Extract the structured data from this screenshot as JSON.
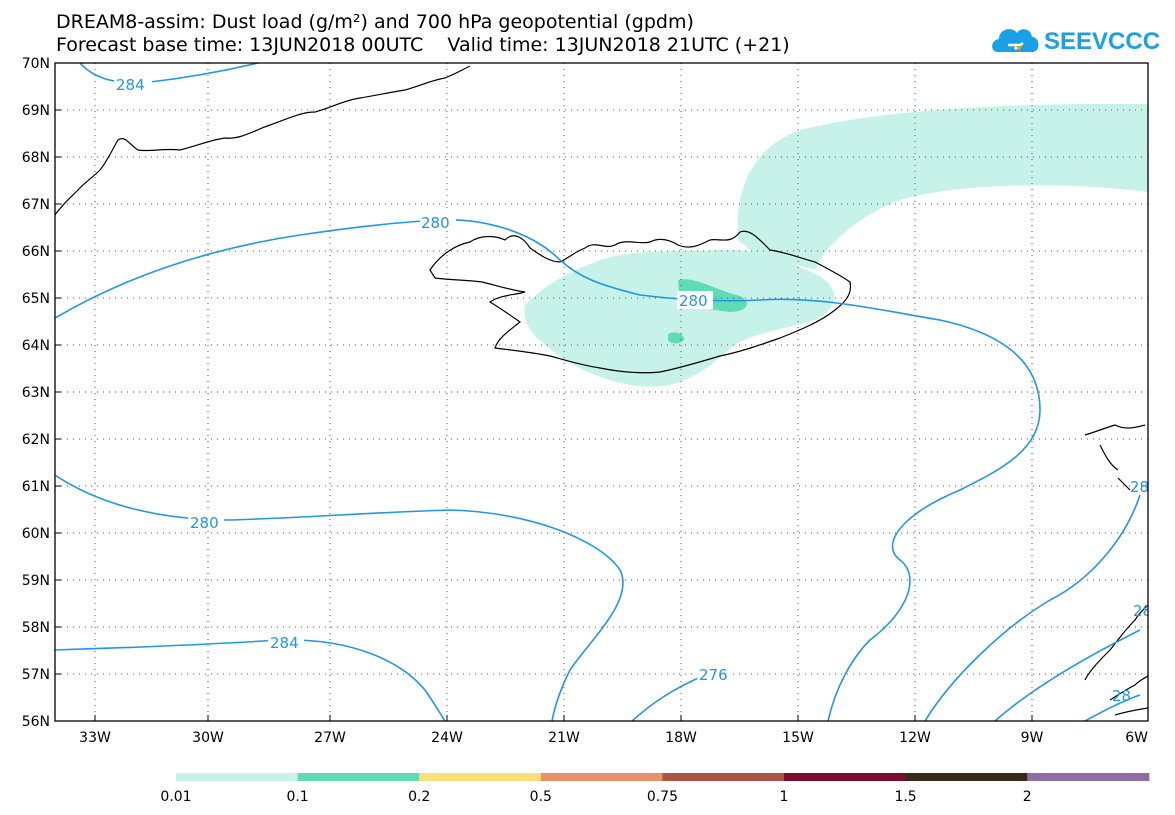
{
  "header": {
    "title_line1": "DREAM8-assim: Dust load (g/m²) and 700 hPa geopotential (gpdm)",
    "title_line2": "Forecast base time: 13JUN2018 00UTC    Valid time: 13JUN2018 21UTC (+21)"
  },
  "logo": {
    "text": "SEEVCCC",
    "icon": "cloud-icon"
  },
  "map": {
    "lat_labels": [
      "70N",
      "69N",
      "68N",
      "67N",
      "66N",
      "65N",
      "64N",
      "63N",
      "62N",
      "61N",
      "60N",
      "59N",
      "58N",
      "57N",
      "56N"
    ],
    "lon_labels": [
      "33W",
      "30W",
      "27W",
      "24W",
      "21W",
      "18W",
      "15W",
      "12W",
      "9W",
      "6W"
    ],
    "contour_labels": [
      "284",
      "280",
      "280",
      "280",
      "284",
      "276",
      "28",
      "28",
      "28"
    ],
    "colors": {
      "contour": "#2196e8",
      "dust_low": "#c6f2ea",
      "dust_mid": "#5fdcb4",
      "coast": "#000000"
    }
  },
  "colorbar": {
    "labels": [
      "0.01",
      "0.1",
      "0.2",
      "0.5",
      "0.75",
      "1",
      "1.5",
      "2"
    ],
    "colors": [
      "#c6f2ea",
      "#5fdcb4",
      "#f4e17a",
      "#e8916a",
      "#a85548",
      "#7d0e32",
      "#3b2a18",
      "#8f6da0"
    ]
  }
}
